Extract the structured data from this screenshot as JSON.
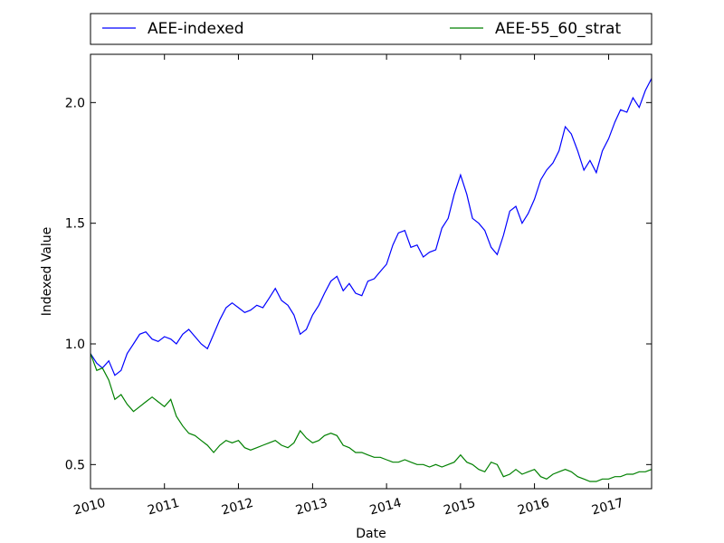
{
  "chart_data": {
    "type": "line",
    "xlabel": "Date",
    "ylabel": "Indexed Value",
    "xlim": [
      "2010-01-01",
      "2017-08-01"
    ],
    "ylim": [
      0.4,
      2.2
    ],
    "x_ticks": [
      "2010",
      "2011",
      "2012",
      "2013",
      "2014",
      "2015",
      "2016",
      "2017"
    ],
    "y_ticks": [
      "0.5",
      "1.0",
      "1.5",
      "2.0"
    ],
    "legend": {
      "placement": "top",
      "columns": 2
    },
    "grid": false,
    "series": [
      {
        "name": "AEE-indexed",
        "color": "#0000ff",
        "points": [
          [
            "2010-01-01",
            0.96
          ],
          [
            "2010-02-01",
            0.92
          ],
          [
            "2010-03-01",
            0.9
          ],
          [
            "2010-04-01",
            0.93
          ],
          [
            "2010-05-01",
            0.87
          ],
          [
            "2010-06-01",
            0.89
          ],
          [
            "2010-07-01",
            0.96
          ],
          [
            "2010-08-01",
            1.0
          ],
          [
            "2010-09-01",
            1.04
          ],
          [
            "2010-10-01",
            1.05
          ],
          [
            "2010-11-01",
            1.02
          ],
          [
            "2010-12-01",
            1.01
          ],
          [
            "2011-01-01",
            1.03
          ],
          [
            "2011-02-01",
            1.02
          ],
          [
            "2011-03-01",
            1.0
          ],
          [
            "2011-04-01",
            1.04
          ],
          [
            "2011-05-01",
            1.06
          ],
          [
            "2011-06-01",
            1.03
          ],
          [
            "2011-07-01",
            1.0
          ],
          [
            "2011-08-01",
            0.98
          ],
          [
            "2011-09-01",
            1.04
          ],
          [
            "2011-10-01",
            1.1
          ],
          [
            "2011-11-01",
            1.15
          ],
          [
            "2011-12-01",
            1.17
          ],
          [
            "2012-01-01",
            1.15
          ],
          [
            "2012-02-01",
            1.13
          ],
          [
            "2012-03-01",
            1.14
          ],
          [
            "2012-04-01",
            1.16
          ],
          [
            "2012-05-01",
            1.15
          ],
          [
            "2012-06-01",
            1.19
          ],
          [
            "2012-07-01",
            1.23
          ],
          [
            "2012-08-01",
            1.18
          ],
          [
            "2012-09-01",
            1.16
          ],
          [
            "2012-10-01",
            1.12
          ],
          [
            "2012-11-01",
            1.04
          ],
          [
            "2012-12-01",
            1.06
          ],
          [
            "2013-01-01",
            1.12
          ],
          [
            "2013-02-01",
            1.16
          ],
          [
            "2013-03-01",
            1.21
          ],
          [
            "2013-04-01",
            1.26
          ],
          [
            "2013-05-01",
            1.28
          ],
          [
            "2013-06-01",
            1.22
          ],
          [
            "2013-07-01",
            1.25
          ],
          [
            "2013-08-01",
            1.21
          ],
          [
            "2013-09-01",
            1.2
          ],
          [
            "2013-10-01",
            1.26
          ],
          [
            "2013-11-01",
            1.27
          ],
          [
            "2013-12-01",
            1.3
          ],
          [
            "2014-01-01",
            1.33
          ],
          [
            "2014-02-01",
            1.41
          ],
          [
            "2014-03-01",
            1.46
          ],
          [
            "2014-04-01",
            1.47
          ],
          [
            "2014-05-01",
            1.4
          ],
          [
            "2014-06-01",
            1.41
          ],
          [
            "2014-07-01",
            1.36
          ],
          [
            "2014-08-01",
            1.38
          ],
          [
            "2014-09-01",
            1.39
          ],
          [
            "2014-10-01",
            1.48
          ],
          [
            "2014-11-01",
            1.52
          ],
          [
            "2014-12-01",
            1.62
          ],
          [
            "2015-01-01",
            1.7
          ],
          [
            "2015-02-01",
            1.62
          ],
          [
            "2015-03-01",
            1.52
          ],
          [
            "2015-04-01",
            1.5
          ],
          [
            "2015-05-01",
            1.47
          ],
          [
            "2015-06-01",
            1.4
          ],
          [
            "2015-07-01",
            1.37
          ],
          [
            "2015-08-01",
            1.45
          ],
          [
            "2015-09-01",
            1.55
          ],
          [
            "2015-10-01",
            1.57
          ],
          [
            "2015-11-01",
            1.5
          ],
          [
            "2015-12-01",
            1.54
          ],
          [
            "2016-01-01",
            1.6
          ],
          [
            "2016-02-01",
            1.68
          ],
          [
            "2016-03-01",
            1.72
          ],
          [
            "2016-04-01",
            1.75
          ],
          [
            "2016-05-01",
            1.8
          ],
          [
            "2016-06-01",
            1.9
          ],
          [
            "2016-07-01",
            1.87
          ],
          [
            "2016-08-01",
            1.8
          ],
          [
            "2016-09-01",
            1.72
          ],
          [
            "2016-10-01",
            1.76
          ],
          [
            "2016-11-01",
            1.71
          ],
          [
            "2016-12-01",
            1.8
          ],
          [
            "2017-01-01",
            1.85
          ],
          [
            "2017-02-01",
            1.92
          ],
          [
            "2017-03-01",
            1.97
          ],
          [
            "2017-04-01",
            1.96
          ],
          [
            "2017-05-01",
            2.02
          ],
          [
            "2017-06-01",
            1.98
          ],
          [
            "2017-07-01",
            2.05
          ],
          [
            "2017-08-01",
            2.1
          ]
        ]
      },
      {
        "name": "AEE-55_60_strat",
        "color": "#008000",
        "points": [
          [
            "2010-01-01",
            0.96
          ],
          [
            "2010-02-01",
            0.89
          ],
          [
            "2010-03-01",
            0.9
          ],
          [
            "2010-04-01",
            0.85
          ],
          [
            "2010-05-01",
            0.77
          ],
          [
            "2010-06-01",
            0.79
          ],
          [
            "2010-07-01",
            0.75
          ],
          [
            "2010-08-01",
            0.72
          ],
          [
            "2010-09-01",
            0.74
          ],
          [
            "2010-10-01",
            0.76
          ],
          [
            "2010-11-01",
            0.78
          ],
          [
            "2010-12-01",
            0.76
          ],
          [
            "2011-01-01",
            0.74
          ],
          [
            "2011-02-01",
            0.77
          ],
          [
            "2011-03-01",
            0.7
          ],
          [
            "2011-04-01",
            0.66
          ],
          [
            "2011-05-01",
            0.63
          ],
          [
            "2011-06-01",
            0.62
          ],
          [
            "2011-07-01",
            0.6
          ],
          [
            "2011-08-01",
            0.58
          ],
          [
            "2011-09-01",
            0.55
          ],
          [
            "2011-10-01",
            0.58
          ],
          [
            "2011-11-01",
            0.6
          ],
          [
            "2011-12-01",
            0.59
          ],
          [
            "2012-01-01",
            0.6
          ],
          [
            "2012-02-01",
            0.57
          ],
          [
            "2012-03-01",
            0.56
          ],
          [
            "2012-04-01",
            0.57
          ],
          [
            "2012-05-01",
            0.58
          ],
          [
            "2012-06-01",
            0.59
          ],
          [
            "2012-07-01",
            0.6
          ],
          [
            "2012-08-01",
            0.58
          ],
          [
            "2012-09-01",
            0.57
          ],
          [
            "2012-10-01",
            0.59
          ],
          [
            "2012-11-01",
            0.64
          ],
          [
            "2012-12-01",
            0.61
          ],
          [
            "2013-01-01",
            0.59
          ],
          [
            "2013-02-01",
            0.6
          ],
          [
            "2013-03-01",
            0.62
          ],
          [
            "2013-04-01",
            0.63
          ],
          [
            "2013-05-01",
            0.62
          ],
          [
            "2013-06-01",
            0.58
          ],
          [
            "2013-07-01",
            0.57
          ],
          [
            "2013-08-01",
            0.55
          ],
          [
            "2013-09-01",
            0.55
          ],
          [
            "2013-10-01",
            0.54
          ],
          [
            "2013-11-01",
            0.53
          ],
          [
            "2013-12-01",
            0.53
          ],
          [
            "2014-01-01",
            0.52
          ],
          [
            "2014-02-01",
            0.51
          ],
          [
            "2014-03-01",
            0.51
          ],
          [
            "2014-04-01",
            0.52
          ],
          [
            "2014-05-01",
            0.51
          ],
          [
            "2014-06-01",
            0.5
          ],
          [
            "2014-07-01",
            0.5
          ],
          [
            "2014-08-01",
            0.49
          ],
          [
            "2014-09-01",
            0.5
          ],
          [
            "2014-10-01",
            0.49
          ],
          [
            "2014-11-01",
            0.5
          ],
          [
            "2014-12-01",
            0.51
          ],
          [
            "2015-01-01",
            0.54
          ],
          [
            "2015-02-01",
            0.51
          ],
          [
            "2015-03-01",
            0.5
          ],
          [
            "2015-04-01",
            0.48
          ],
          [
            "2015-05-01",
            0.47
          ],
          [
            "2015-06-01",
            0.51
          ],
          [
            "2015-07-01",
            0.5
          ],
          [
            "2015-08-01",
            0.45
          ],
          [
            "2015-09-01",
            0.46
          ],
          [
            "2015-10-01",
            0.48
          ],
          [
            "2015-11-01",
            0.46
          ],
          [
            "2015-12-01",
            0.47
          ],
          [
            "2016-01-01",
            0.48
          ],
          [
            "2016-02-01",
            0.45
          ],
          [
            "2016-03-01",
            0.44
          ],
          [
            "2016-04-01",
            0.46
          ],
          [
            "2016-05-01",
            0.47
          ],
          [
            "2016-06-01",
            0.48
          ],
          [
            "2016-07-01",
            0.47
          ],
          [
            "2016-08-01",
            0.45
          ],
          [
            "2016-09-01",
            0.44
          ],
          [
            "2016-10-01",
            0.43
          ],
          [
            "2016-11-01",
            0.43
          ],
          [
            "2016-12-01",
            0.44
          ],
          [
            "2017-01-01",
            0.44
          ],
          [
            "2017-02-01",
            0.45
          ],
          [
            "2017-03-01",
            0.45
          ],
          [
            "2017-04-01",
            0.46
          ],
          [
            "2017-05-01",
            0.46
          ],
          [
            "2017-06-01",
            0.47
          ],
          [
            "2017-07-01",
            0.47
          ],
          [
            "2017-08-01",
            0.48
          ]
        ]
      }
    ]
  }
}
